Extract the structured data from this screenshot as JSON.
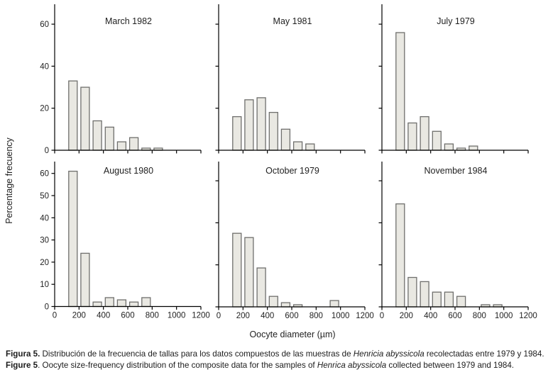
{
  "figure": {
    "ylabel": "Percentage frecuency",
    "xlabel": "Oocyte diameter (µm)"
  },
  "colors": {
    "bar_fill": "#e9e8e2",
    "bar_stroke": "#6f6f6d",
    "axis": "#000000",
    "text": "#1f1f1f"
  },
  "chart_data": [
    {
      "type": "bar",
      "title": "March 1982",
      "bin_centers": [
        150,
        250,
        350,
        450,
        550,
        650,
        750,
        850
      ],
      "values": [
        33,
        30,
        14,
        11,
        4,
        6,
        1,
        1
      ],
      "ylim": [
        0,
        69
      ],
      "yticks": [
        0,
        20,
        40,
        60
      ],
      "ytick_labels": [
        "0",
        "20",
        "40",
        "60"
      ],
      "xlim": [
        0,
        1200
      ],
      "xticks": [
        0,
        200,
        400,
        600,
        800,
        1000,
        1200
      ],
      "xtick_labels": []
    },
    {
      "type": "bar",
      "title": "May 1981",
      "bin_centers": [
        150,
        250,
        350,
        450,
        550,
        650,
        750
      ],
      "values": [
        16,
        24,
        25,
        18,
        10,
        4,
        3
      ],
      "ylim": [
        0,
        69
      ],
      "yticks": [
        0,
        20,
        40,
        60
      ],
      "ytick_labels": [],
      "xlim": [
        0,
        1200
      ],
      "xticks": [
        0,
        200,
        400,
        600,
        800,
        1000,
        1200
      ],
      "xtick_labels": []
    },
    {
      "type": "bar",
      "title": "July 1979",
      "bin_centers": [
        150,
        250,
        350,
        450,
        550,
        650,
        750
      ],
      "values": [
        56,
        13,
        16,
        9,
        3,
        1,
        2
      ],
      "ylim": [
        0,
        69
      ],
      "yticks": [
        0,
        20,
        40,
        60
      ],
      "ytick_labels": [],
      "xlim": [
        0,
        1200
      ],
      "xticks": [
        0,
        200,
        400,
        600,
        800,
        1000,
        1200
      ],
      "xtick_labels": []
    },
    {
      "type": "bar",
      "title": "August 1980",
      "bin_centers": [
        150,
        250,
        350,
        450,
        550,
        650,
        750
      ],
      "values": [
        61,
        24,
        2,
        4,
        3,
        2,
        4
      ],
      "ylim": [
        0,
        65
      ],
      "yticks": [
        0,
        10,
        20,
        30,
        40,
        50,
        60
      ],
      "ytick_labels": [
        "0",
        "10",
        "20",
        "30",
        "40",
        "50",
        "60"
      ],
      "xlim": [
        0,
        1200
      ],
      "xticks": [
        0,
        200,
        400,
        600,
        800,
        1000,
        1200
      ],
      "xtick_labels": [
        "0",
        "200",
        "400",
        "600",
        "800",
        "1000",
        "1200"
      ]
    },
    {
      "type": "bar",
      "title": "October 1979",
      "bin_centers": [
        150,
        250,
        350,
        450,
        550,
        650,
        950
      ],
      "values": [
        35,
        33,
        18.5,
        5,
        2,
        1,
        3
      ],
      "ylim": [
        0,
        69
      ],
      "yticks": [
        0,
        20,
        40,
        60
      ],
      "ytick_labels": [],
      "xlim": [
        0,
        1200
      ],
      "xticks": [
        0,
        200,
        400,
        600,
        800,
        1000,
        1200
      ],
      "xtick_labels": [
        "0",
        "200",
        "400",
        "600",
        "800",
        "1000",
        "1200"
      ]
    },
    {
      "type": "bar",
      "title": "November 1984",
      "bin_centers": [
        150,
        250,
        350,
        450,
        550,
        650,
        850,
        950
      ],
      "values": [
        49,
        14,
        12,
        7,
        7,
        5,
        1,
        1
      ],
      "ylim": [
        0,
        69
      ],
      "yticks": [
        0,
        20,
        40,
        60
      ],
      "ytick_labels": [],
      "xlim": [
        0,
        1200
      ],
      "xticks": [
        0,
        200,
        400,
        600,
        800,
        1000,
        1200
      ],
      "xtick_labels": [
        "0",
        "200",
        "400",
        "600",
        "800",
        "1000",
        "1200"
      ]
    }
  ],
  "caption": {
    "lines": [
      {
        "segments": [
          {
            "text": "Figura 5.",
            "bold": true,
            "italic": false
          },
          {
            "text": " Distribución de la frecuencia de tallas para los datos compuestos de las muestras de ",
            "bold": false,
            "italic": false
          },
          {
            "text": "Henricia abyssicola",
            "bold": false,
            "italic": true
          },
          {
            "text": " recolectadas entre 1979 y 1984.",
            "bold": false,
            "italic": false
          }
        ]
      },
      {
        "segments": [
          {
            "text": "Figure 5",
            "bold": true,
            "italic": false
          },
          {
            "text": ". Oocyte size-frequency distribution of the composite data for the samples of ",
            "bold": false,
            "italic": false
          },
          {
            "text": "Henrica abyssicola",
            "bold": false,
            "italic": true
          },
          {
            "text": " collected between 1979 and 1984.",
            "bold": false,
            "italic": false
          }
        ]
      }
    ]
  }
}
